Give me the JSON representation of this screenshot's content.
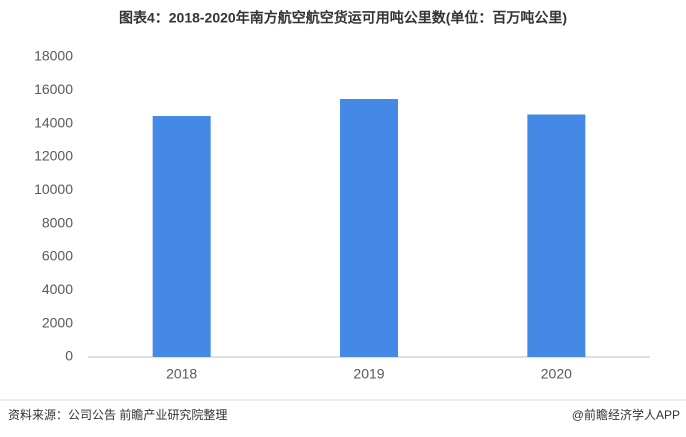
{
  "chart_data": {
    "type": "bar",
    "title": "图表4：2018-2020年南方航空航空货运可用吨公里数(单位：百万吨公里)",
    "categories": [
      "2018",
      "2019",
      "2020"
    ],
    "values": [
      14460,
      15480,
      14550
    ],
    "color": "#4589e6",
    "ylim": [
      0,
      18000
    ],
    "yticks": [
      0,
      2000,
      4000,
      6000,
      8000,
      10000,
      12000,
      14000,
      16000,
      18000
    ],
    "grid": false,
    "source": "资料来源：公司公告 前瞻产业研究院整理",
    "credit": "@前瞻经济学人APP"
  }
}
